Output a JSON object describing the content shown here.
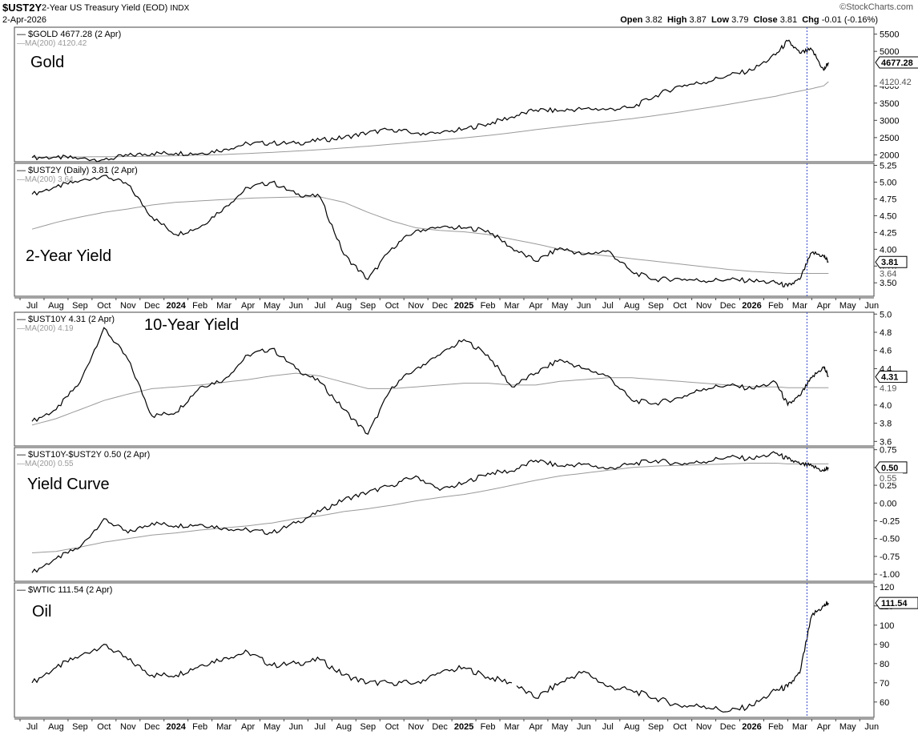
{
  "header": {
    "symbol": "$UST2Y",
    "description": "2-Year US Treasury Yield (EOD)",
    "exchange": "INDX",
    "date": "2-Apr-2026",
    "logo": "©StockCharts.com",
    "open_label": "Open",
    "open": "3.82",
    "high_label": "High",
    "high": "3.87",
    "low_label": "Low",
    "low": "3.79",
    "close_label": "Close",
    "close": "3.81",
    "chg_label": "Chg",
    "chg": "-0.01 (-0.16%)"
  },
  "x_axis": {
    "months": [
      "Jul",
      "Aug",
      "Sep",
      "Oct",
      "Nov",
      "Dec",
      "2024",
      "Feb",
      "Mar",
      "Apr",
      "May",
      "Jun",
      "Jul",
      "Aug",
      "Sep",
      "Oct",
      "Nov",
      "Dec",
      "2025",
      "Feb",
      "Mar",
      "Apr",
      "May",
      "Jun",
      "Jul",
      "Aug",
      "Sep",
      "Oct",
      "Nov",
      "Dec",
      "2026",
      "Feb",
      "Mar",
      "Apr",
      "May",
      "Jun"
    ],
    "bold_labels": [
      "2024",
      "2025",
      "2026"
    ],
    "marker_month_index": 32.3
  },
  "chart_data": [
    {
      "type": "line",
      "legend": "$GOLD 4677.28 (2 Apr)",
      "ma_legend": "MA(200) 4120.42",
      "annotation": "Gold",
      "ylim": [
        1800,
        5700
      ],
      "yticks": [
        2000,
        2500,
        3000,
        3500,
        4000,
        5000,
        5500
      ],
      "last_value": "4677.28",
      "ma_value": "4120.42",
      "x_months": [
        0,
        1,
        2,
        3,
        4,
        5,
        6,
        7,
        8,
        9,
        10,
        11,
        12,
        13,
        14,
        15,
        16,
        17,
        18,
        19,
        20,
        21,
        22,
        23,
        24,
        25,
        26,
        27,
        28,
        29,
        30,
        31,
        31.5,
        32,
        32.5,
        33,
        33.2
      ],
      "values": [
        1920,
        1930,
        1900,
        1860,
        1980,
        2040,
        2050,
        2040,
        2160,
        2330,
        2340,
        2330,
        2420,
        2500,
        2640,
        2740,
        2630,
        2620,
        2750,
        2900,
        3100,
        3300,
        3280,
        3340,
        3320,
        3370,
        3720,
        4000,
        4100,
        4300,
        4450,
        4900,
        5300,
        4950,
        5050,
        4450,
        4677.28
      ],
      "ma_values": [
        1930,
        1935,
        1940,
        1945,
        1950,
        1960,
        1975,
        1990,
        2010,
        2040,
        2070,
        2110,
        2150,
        2200,
        2250,
        2310,
        2370,
        2430,
        2490,
        2560,
        2640,
        2730,
        2810,
        2890,
        2970,
        3050,
        3140,
        3240,
        3350,
        3460,
        3580,
        3700,
        3780,
        3850,
        3920,
        4000,
        4120.42
      ],
      "label": "Gold"
    },
    {
      "type": "line",
      "legend": "$UST2Y (Daily) 3.81 (2 Apr)",
      "ma_legend": "MA(200) 3.64",
      "annotation": "2-Year Yield",
      "ylim": [
        3.3,
        5.28
      ],
      "yticks": [
        3.5,
        3.75,
        4.0,
        4.25,
        4.5,
        4.75,
        5.0,
        5.25
      ],
      "last_value": "3.81",
      "ma_value": "3.64",
      "x_months": [
        0,
        1,
        2,
        3,
        4,
        5,
        6,
        7,
        8,
        9,
        10,
        11,
        12,
        13,
        14,
        15,
        16,
        17,
        18,
        19,
        20,
        21,
        22,
        23,
        24,
        25,
        26,
        27,
        28,
        29,
        30,
        31,
        31.5,
        32,
        32.5,
        33,
        33.2
      ],
      "values": [
        4.82,
        4.93,
        5.02,
        5.1,
        4.96,
        4.48,
        4.22,
        4.33,
        4.62,
        4.92,
        5.0,
        4.82,
        4.78,
        3.92,
        3.55,
        4.02,
        4.28,
        4.32,
        4.32,
        4.28,
        4.02,
        3.82,
        4.02,
        3.92,
        3.98,
        3.66,
        3.55,
        3.56,
        3.53,
        3.55,
        3.53,
        3.5,
        3.45,
        3.55,
        3.95,
        3.9,
        3.81
      ],
      "ma_values": [
        4.3,
        4.4,
        4.48,
        4.55,
        4.6,
        4.66,
        4.7,
        4.72,
        4.74,
        4.76,
        4.77,
        4.78,
        4.78,
        4.7,
        4.55,
        4.42,
        4.32,
        4.28,
        4.26,
        4.22,
        4.15,
        4.08,
        4.0,
        3.94,
        3.9,
        3.86,
        3.82,
        3.78,
        3.74,
        3.7,
        3.67,
        3.65,
        3.64,
        3.64,
        3.64,
        3.64,
        3.64
      ],
      "label": "2-Year Yield"
    },
    {
      "type": "line",
      "legend": "$UST10Y 4.31 (2 Apr)",
      "ma_legend": "MA(200) 4.19",
      "annotation": "10-Year Yield",
      "ylim": [
        3.55,
        5.02
      ],
      "yticks": [
        3.6,
        3.8,
        4.0,
        4.2,
        4.4,
        4.6,
        4.8,
        5.0
      ],
      "last_value": "4.31",
      "ma_value": "4.19",
      "x_months": [
        0,
        1,
        2,
        3,
        4,
        5,
        6,
        7,
        8,
        9,
        10,
        11,
        12,
        13,
        14,
        15,
        16,
        17,
        18,
        19,
        20,
        21,
        22,
        23,
        24,
        25,
        26,
        27,
        28,
        29,
        30,
        31,
        31.5,
        32,
        32.5,
        33,
        33.2
      ],
      "values": [
        3.82,
        3.95,
        4.25,
        4.85,
        4.5,
        3.88,
        3.92,
        4.2,
        4.28,
        4.55,
        4.62,
        4.4,
        4.25,
        3.95,
        3.68,
        4.2,
        4.4,
        4.55,
        4.72,
        4.55,
        4.2,
        4.35,
        4.5,
        4.4,
        4.32,
        4.05,
        4.02,
        4.08,
        4.18,
        4.22,
        4.18,
        4.25,
        4.0,
        4.1,
        4.3,
        4.42,
        4.31
      ],
      "ma_values": [
        3.78,
        3.85,
        3.95,
        4.05,
        4.12,
        4.18,
        4.2,
        4.22,
        4.25,
        4.28,
        4.32,
        4.35,
        4.32,
        4.25,
        4.18,
        4.18,
        4.2,
        4.22,
        4.24,
        4.24,
        4.22,
        4.22,
        4.26,
        4.28,
        4.3,
        4.3,
        4.28,
        4.26,
        4.24,
        4.22,
        4.2,
        4.2,
        4.19,
        4.19,
        4.19,
        4.19,
        4.19
      ],
      "label": "10-Year Yield"
    },
    {
      "type": "line",
      "legend": "$UST10Y-$UST2Y 0.50 (2 Apr)",
      "ma_legend": "MA(200) 0.55",
      "annotation": "Yield Curve",
      "ylim": [
        -1.1,
        0.78
      ],
      "yticks": [
        -1.0,
        -0.75,
        -0.5,
        -0.25,
        0.0,
        0.25,
        0.5,
        0.75
      ],
      "last_value": "0.50",
      "ma_value": "0.55",
      "x_months": [
        0,
        1,
        2,
        3,
        4,
        5,
        6,
        7,
        8,
        9,
        10,
        11,
        12,
        13,
        14,
        15,
        16,
        17,
        18,
        19,
        20,
        21,
        22,
        23,
        24,
        25,
        26,
        27,
        28,
        29,
        30,
        31,
        31.5,
        32,
        32.5,
        33,
        33.2
      ],
      "values": [
        -0.98,
        -0.78,
        -0.62,
        -0.22,
        -0.42,
        -0.28,
        -0.32,
        -0.3,
        -0.35,
        -0.38,
        -0.42,
        -0.28,
        -0.12,
        0.05,
        0.15,
        0.25,
        0.38,
        0.18,
        0.28,
        0.42,
        0.45,
        0.6,
        0.52,
        0.55,
        0.48,
        0.55,
        0.6,
        0.55,
        0.58,
        0.65,
        0.62,
        0.7,
        0.62,
        0.55,
        0.52,
        0.45,
        0.5
      ],
      "ma_values": [
        -0.7,
        -0.68,
        -0.62,
        -0.55,
        -0.5,
        -0.45,
        -0.42,
        -0.38,
        -0.35,
        -0.32,
        -0.28,
        -0.22,
        -0.18,
        -0.12,
        -0.08,
        -0.03,
        0.03,
        0.08,
        0.12,
        0.18,
        0.25,
        0.32,
        0.38,
        0.42,
        0.46,
        0.5,
        0.52,
        0.53,
        0.54,
        0.55,
        0.56,
        0.56,
        0.55,
        0.55,
        0.55,
        0.55,
        0.55
      ],
      "label": "Yield Curve"
    },
    {
      "type": "line",
      "legend": "$WTIC 111.54 (2 Apr)",
      "annotation": "Oil",
      "ylim": [
        52,
        122
      ],
      "yticks": [
        60,
        70,
        80,
        90,
        100,
        110,
        120
      ],
      "last_value": "111.54",
      "gap_after_index": 20,
      "x_months": [
        0,
        1,
        2,
        3,
        4,
        5,
        6,
        7,
        8,
        9,
        10,
        11,
        12,
        13,
        14,
        15,
        16,
        17,
        18,
        19,
        20,
        21,
        22,
        23,
        24,
        25,
        26,
        27,
        28,
        29,
        30,
        31,
        31.5,
        32,
        32.5,
        33,
        33.2
      ],
      "values": [
        70,
        78,
        84,
        90,
        82,
        74,
        74,
        79,
        83,
        86,
        79,
        80,
        82,
        74,
        70,
        70,
        70,
        75,
        78,
        73,
        70,
        62,
        70,
        76,
        68,
        66,
        62,
        58,
        58,
        55,
        58,
        66,
        68,
        75,
        105,
        110,
        111.54
      ],
      "label": "Oil"
    }
  ]
}
